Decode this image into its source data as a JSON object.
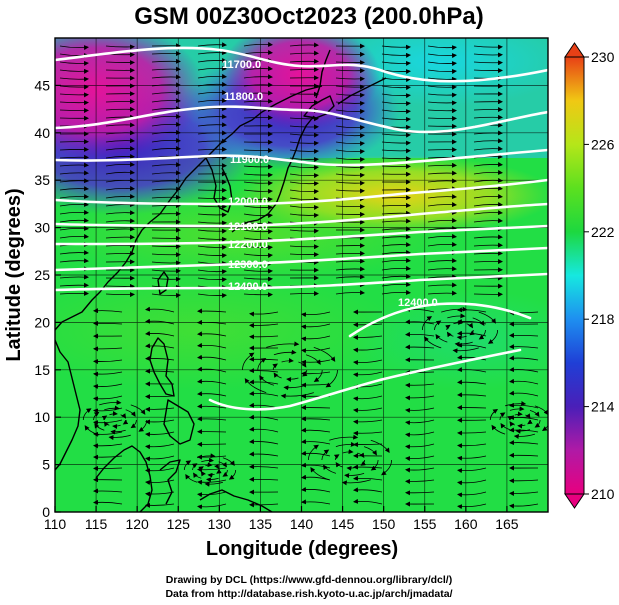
{
  "title": "GSM 00Z30Oct2023 (200.0hPa)",
  "xlabel": "Longitude (degrees)",
  "ylabel": "Latitude  (degrees)",
  "credits": [
    "Drawing by DCL (https://www.gfd-dennou.org/library/dcl/)",
    "Data from http://database.rish.kyoto-u.ac.jp/arch/jmadata/"
  ],
  "map": {
    "x_range": [
      110,
      170
    ],
    "y_range": [
      0,
      50
    ],
    "x_ticks": [
      "110",
      "115",
      "120",
      "125",
      "130",
      "135",
      "140",
      "145",
      "150",
      "155",
      "160",
      "165"
    ],
    "y_ticks": [
      "0",
      "5",
      "10",
      "15",
      "20",
      "25",
      "30",
      "35",
      "40",
      "45"
    ],
    "fields": [
      "temperature shading",
      "geopotential height contours",
      "wind streamlines",
      "coastlines"
    ]
  },
  "colorbar": {
    "min": 210,
    "max": 230,
    "ticks": [
      "230",
      "226",
      "222",
      "218",
      "214",
      "210"
    ],
    "colors": [
      "#e8007f",
      "#7a17b8",
      "#1f29c9",
      "#1e8ff0",
      "#16e8e0",
      "#1dd83f",
      "#52e021",
      "#aee61a",
      "#f0dd14",
      "#f5960d",
      "#e84016"
    ]
  },
  "contours": [
    {
      "label": "11700.0"
    },
    {
      "label": "11800.0"
    },
    {
      "label": "11900.0"
    },
    {
      "label": "12000.0"
    },
    {
      "label": "12100.0"
    },
    {
      "label": "12200.0"
    },
    {
      "label": "12300.0"
    },
    {
      "label": "12400.0"
    },
    {
      "label": "12400.0"
    }
  ]
}
